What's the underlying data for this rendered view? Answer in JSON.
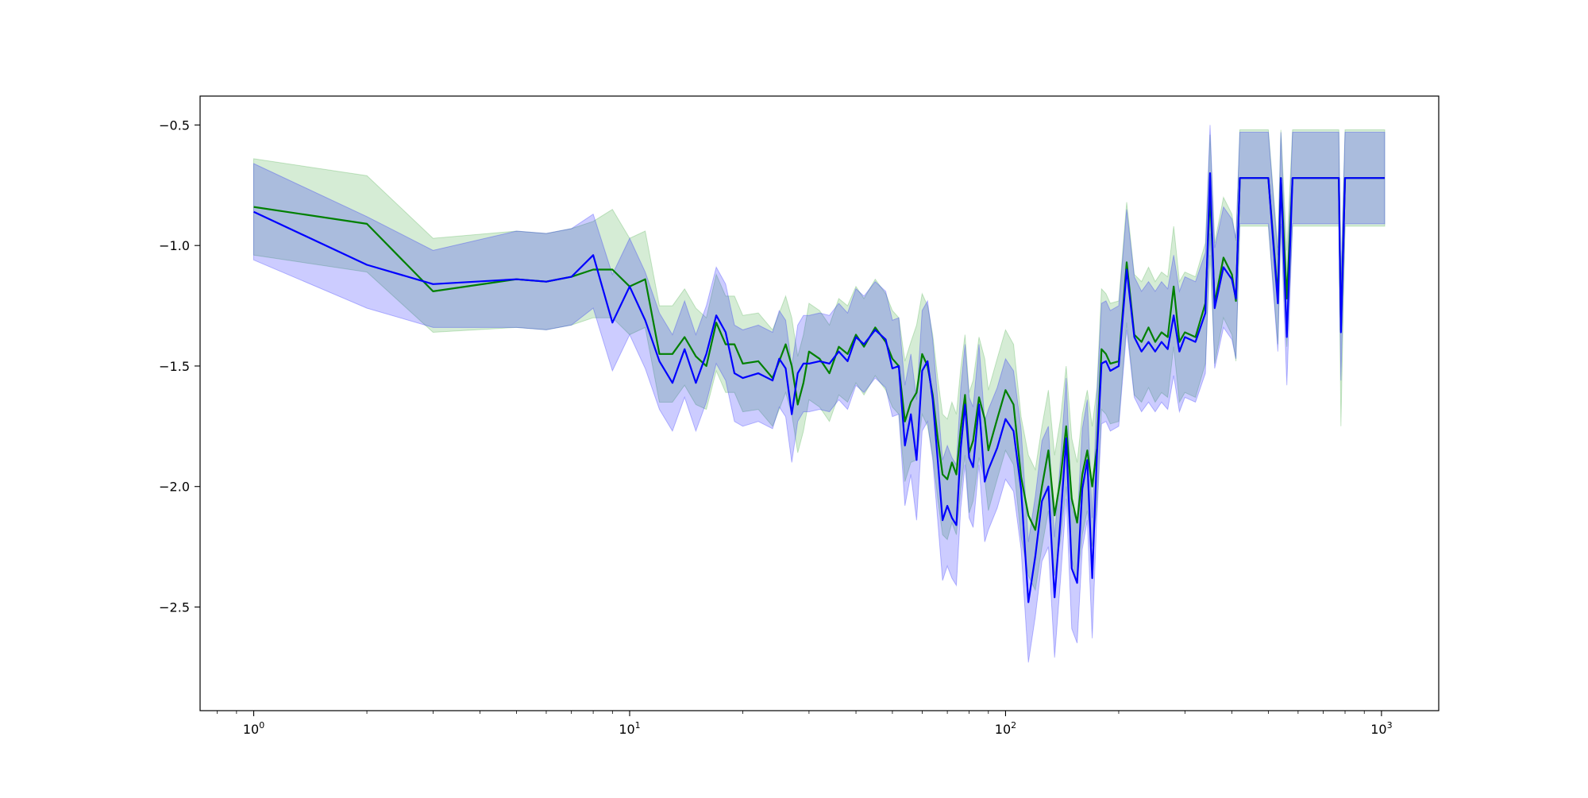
{
  "chart_data": {
    "type": "line",
    "title": "",
    "xlabel": "",
    "ylabel": "",
    "x_scale": "log",
    "xlim": [
      0.72,
      1420
    ],
    "ylim": [
      -2.93,
      -0.38
    ],
    "grid": false,
    "legend": "none",
    "x_ticks": [
      1,
      10,
      100,
      1000
    ],
    "x_tick_labels": [
      {
        "base": "10",
        "exp": "0"
      },
      {
        "base": "10",
        "exp": "1"
      },
      {
        "base": "10",
        "exp": "2"
      },
      {
        "base": "10",
        "exp": "3"
      }
    ],
    "y_ticks": [
      -0.5,
      -1.0,
      -1.5,
      -2.0,
      -2.5
    ],
    "y_tick_labels": [
      "−0.5",
      "−1.0",
      "−1.5",
      "−2.0",
      "−2.5"
    ],
    "series": [
      {
        "color": "#008000",
        "band_color": "#2ca02c",
        "x": [
          1,
          2,
          3,
          5,
          6,
          7,
          8,
          9,
          10,
          11,
          12,
          13,
          14,
          15,
          16,
          17,
          18,
          19,
          20,
          22,
          24,
          25,
          26,
          27,
          28,
          29,
          30,
          32,
          34,
          36,
          38,
          40,
          42,
          45,
          48,
          50,
          52,
          54,
          56,
          58,
          60,
          62,
          64,
          66,
          68,
          70,
          72,
          74,
          76,
          78,
          80,
          82,
          85,
          88,
          90,
          95,
          100,
          105,
          110,
          115,
          120,
          125,
          130,
          135,
          140,
          145,
          150,
          155,
          160,
          165,
          170,
          175,
          180,
          185,
          190,
          200,
          210,
          220,
          230,
          240,
          250,
          260,
          270,
          280,
          290,
          300,
          320,
          340,
          350,
          360,
          380,
          400,
          410,
          420,
          500,
          530,
          540,
          560,
          580,
          600,
          700,
          770,
          780,
          800,
          1000,
          1020
        ],
        "y": [
          -0.84,
          -0.91,
          -1.19,
          -1.14,
          -1.15,
          -1.13,
          -1.1,
          -1.1,
          -1.17,
          -1.14,
          -1.45,
          -1.45,
          -1.38,
          -1.46,
          -1.5,
          -1.32,
          -1.41,
          -1.41,
          -1.49,
          -1.48,
          -1.55,
          -1.48,
          -1.41,
          -1.5,
          -1.66,
          -1.57,
          -1.44,
          -1.47,
          -1.53,
          -1.42,
          -1.45,
          -1.37,
          -1.42,
          -1.34,
          -1.4,
          -1.47,
          -1.5,
          -1.73,
          -1.65,
          -1.61,
          -1.45,
          -1.5,
          -1.62,
          -1.8,
          -1.95,
          -1.97,
          -1.9,
          -1.95,
          -1.76,
          -1.62,
          -1.86,
          -1.81,
          -1.63,
          -1.72,
          -1.85,
          -1.72,
          -1.6,
          -1.66,
          -1.96,
          -2.12,
          -2.18,
          -2.0,
          -1.85,
          -2.12,
          -1.97,
          -1.75,
          -2.05,
          -2.15,
          -1.95,
          -1.85,
          -2.0,
          -1.84,
          -1.43,
          -1.45,
          -1.49,
          -1.48,
          -1.07,
          -1.37,
          -1.4,
          -1.34,
          -1.4,
          -1.36,
          -1.38,
          -1.17,
          -1.4,
          -1.36,
          -1.38,
          -1.24,
          -0.79,
          -1.24,
          -1.05,
          -1.12,
          -1.23,
          -0.72,
          -0.72,
          -1.21,
          -0.72,
          -1.22,
          -0.72,
          -0.72,
          -0.72,
          -0.72,
          -1.35,
          -0.72,
          -0.72,
          -0.72
        ],
        "upper": [
          -0.64,
          -0.71,
          -0.97,
          -0.94,
          -0.95,
          -0.93,
          -0.9,
          -0.85,
          -0.97,
          -0.94,
          -1.25,
          -1.25,
          -1.18,
          -1.26,
          -1.3,
          -1.12,
          -1.21,
          -1.21,
          -1.29,
          -1.28,
          -1.35,
          -1.28,
          -1.21,
          -1.3,
          -1.46,
          -1.37,
          -1.24,
          -1.27,
          -1.33,
          -1.22,
          -1.25,
          -1.17,
          -1.22,
          -1.14,
          -1.2,
          -1.27,
          -1.3,
          -1.48,
          -1.4,
          -1.33,
          -1.2,
          -1.25,
          -1.37,
          -1.55,
          -1.7,
          -1.72,
          -1.65,
          -1.7,
          -1.51,
          -1.37,
          -1.61,
          -1.56,
          -1.38,
          -1.47,
          -1.6,
          -1.47,
          -1.35,
          -1.41,
          -1.71,
          -1.87,
          -1.93,
          -1.75,
          -1.6,
          -1.87,
          -1.72,
          -1.5,
          -1.8,
          -1.9,
          -1.7,
          -1.6,
          -1.75,
          -1.59,
          -1.18,
          -1.2,
          -1.24,
          -1.23,
          -0.82,
          -1.12,
          -1.15,
          -1.09,
          -1.15,
          -1.11,
          -1.13,
          -0.92,
          -1.15,
          -1.11,
          -1.13,
          -0.99,
          -0.54,
          -0.99,
          -0.8,
          -0.87,
          -0.98,
          -0.52,
          -0.52,
          -1.01,
          -0.52,
          -1.02,
          -0.52,
          -0.52,
          -0.52,
          -0.52,
          -1.15,
          -0.52,
          -0.52,
          -0.52
        ],
        "lower": [
          -1.04,
          -1.11,
          -1.36,
          -1.34,
          -1.35,
          -1.33,
          -1.3,
          -1.3,
          -1.37,
          -1.34,
          -1.65,
          -1.65,
          -1.58,
          -1.66,
          -1.68,
          -1.52,
          -1.61,
          -1.61,
          -1.69,
          -1.68,
          -1.75,
          -1.68,
          -1.61,
          -1.7,
          -1.86,
          -1.77,
          -1.64,
          -1.67,
          -1.73,
          -1.62,
          -1.65,
          -1.57,
          -1.62,
          -1.54,
          -1.6,
          -1.67,
          -1.7,
          -1.98,
          -1.9,
          -1.89,
          -1.7,
          -1.75,
          -1.87,
          -2.05,
          -2.2,
          -2.22,
          -2.15,
          -2.2,
          -2.01,
          -1.87,
          -2.11,
          -2.06,
          -1.88,
          -1.97,
          -2.1,
          -1.97,
          -1.85,
          -1.91,
          -2.21,
          -2.37,
          -2.43,
          -2.25,
          -2.1,
          -2.37,
          -2.22,
          -2.0,
          -2.3,
          -2.4,
          -2.2,
          -2.1,
          -2.25,
          -2.09,
          -1.68,
          -1.7,
          -1.74,
          -1.73,
          -1.32,
          -1.62,
          -1.65,
          -1.59,
          -1.65,
          -1.61,
          -1.63,
          -1.42,
          -1.65,
          -1.61,
          -1.63,
          -1.49,
          -1.04,
          -1.49,
          -1.3,
          -1.37,
          -1.48,
          -0.92,
          -0.92,
          -1.41,
          -0.92,
          -1.42,
          -0.92,
          -0.92,
          -0.92,
          -0.92,
          -1.75,
          -0.92,
          -0.92,
          -0.92
        ]
      },
      {
        "color": "#0000ff",
        "band_color": "#0000ff",
        "x": [
          1,
          2,
          3,
          5,
          6,
          7,
          8,
          9,
          10,
          11,
          12,
          13,
          14,
          15,
          16,
          17,
          18,
          19,
          20,
          22,
          24,
          25,
          26,
          27,
          28,
          29,
          30,
          32,
          34,
          36,
          38,
          40,
          42,
          45,
          48,
          50,
          52,
          54,
          56,
          58,
          60,
          62,
          64,
          66,
          68,
          70,
          72,
          74,
          76,
          78,
          80,
          82,
          85,
          88,
          90,
          95,
          100,
          105,
          110,
          115,
          120,
          125,
          130,
          135,
          140,
          145,
          150,
          155,
          160,
          165,
          170,
          175,
          180,
          185,
          190,
          200,
          210,
          220,
          230,
          240,
          250,
          260,
          270,
          280,
          290,
          300,
          320,
          340,
          350,
          360,
          380,
          400,
          410,
          420,
          500,
          530,
          540,
          560,
          580,
          600,
          700,
          770,
          780,
          800,
          1000,
          1020
        ],
        "y": [
          -0.86,
          -1.08,
          -1.16,
          -1.14,
          -1.15,
          -1.13,
          -1.04,
          -1.32,
          -1.17,
          -1.31,
          -1.48,
          -1.57,
          -1.43,
          -1.57,
          -1.45,
          -1.29,
          -1.36,
          -1.53,
          -1.55,
          -1.53,
          -1.56,
          -1.47,
          -1.51,
          -1.7,
          -1.53,
          -1.49,
          -1.49,
          -1.48,
          -1.49,
          -1.44,
          -1.48,
          -1.38,
          -1.41,
          -1.35,
          -1.39,
          -1.51,
          -1.5,
          -1.83,
          -1.7,
          -1.89,
          -1.52,
          -1.48,
          -1.64,
          -1.89,
          -2.14,
          -2.08,
          -2.13,
          -2.16,
          -1.84,
          -1.66,
          -1.88,
          -1.92,
          -1.66,
          -1.98,
          -1.93,
          -1.84,
          -1.72,
          -1.77,
          -2.01,
          -2.48,
          -2.29,
          -2.06,
          -2.0,
          -2.46,
          -2.14,
          -1.8,
          -2.34,
          -2.4,
          -2.01,
          -1.89,
          -2.38,
          -1.87,
          -1.49,
          -1.48,
          -1.52,
          -1.5,
          -1.1,
          -1.38,
          -1.44,
          -1.4,
          -1.44,
          -1.4,
          -1.43,
          -1.29,
          -1.44,
          -1.38,
          -1.4,
          -1.28,
          -0.7,
          -1.26,
          -1.09,
          -1.14,
          -1.22,
          -0.72,
          -0.72,
          -1.24,
          -0.72,
          -1.38,
          -0.72,
          -0.72,
          -0.72,
          -0.72,
          -1.36,
          -0.72,
          -0.72,
          -0.72
        ],
        "upper": [
          -0.66,
          -0.88,
          -1.02,
          -0.94,
          -0.95,
          -0.93,
          -0.87,
          -1.12,
          -0.97,
          -1.11,
          -1.28,
          -1.37,
          -1.23,
          -1.37,
          -1.25,
          -1.09,
          -1.16,
          -1.33,
          -1.35,
          -1.33,
          -1.36,
          -1.27,
          -1.31,
          -1.5,
          -1.33,
          -1.29,
          -1.29,
          -1.28,
          -1.29,
          -1.24,
          -1.28,
          -1.18,
          -1.21,
          -1.15,
          -1.19,
          -1.31,
          -1.3,
          -1.58,
          -1.45,
          -1.64,
          -1.27,
          -1.23,
          -1.39,
          -1.64,
          -1.89,
          -1.83,
          -1.88,
          -1.91,
          -1.59,
          -1.41,
          -1.63,
          -1.67,
          -1.41,
          -1.73,
          -1.68,
          -1.59,
          -1.47,
          -1.52,
          -1.76,
          -2.23,
          -2.04,
          -1.81,
          -1.75,
          -2.21,
          -1.89,
          -1.55,
          -2.09,
          -2.15,
          -1.76,
          -1.64,
          -2.13,
          -1.62,
          -1.24,
          -1.23,
          -1.27,
          -1.25,
          -0.85,
          -1.13,
          -1.19,
          -1.15,
          -1.19,
          -1.15,
          -1.18,
          -1.04,
          -1.19,
          -1.13,
          -1.15,
          -1.03,
          -0.5,
          -1.01,
          -0.84,
          -0.89,
          -0.97,
          -0.53,
          -0.53,
          -1.04,
          -0.53,
          -1.18,
          -0.53,
          -0.53,
          -0.53,
          -0.53,
          -1.16,
          -0.53,
          -0.53,
          -0.53
        ],
        "lower": [
          -1.06,
          -1.26,
          -1.34,
          -1.34,
          -1.35,
          -1.33,
          -1.26,
          -1.52,
          -1.37,
          -1.51,
          -1.68,
          -1.77,
          -1.63,
          -1.77,
          -1.65,
          -1.49,
          -1.56,
          -1.73,
          -1.75,
          -1.73,
          -1.76,
          -1.67,
          -1.71,
          -1.9,
          -1.73,
          -1.69,
          -1.69,
          -1.68,
          -1.69,
          -1.64,
          -1.68,
          -1.58,
          -1.61,
          -1.55,
          -1.59,
          -1.71,
          -1.7,
          -2.08,
          -1.95,
          -2.14,
          -1.77,
          -1.73,
          -1.89,
          -2.14,
          -2.39,
          -2.33,
          -2.38,
          -2.41,
          -2.09,
          -1.91,
          -2.13,
          -2.17,
          -1.91,
          -2.23,
          -2.18,
          -2.09,
          -1.97,
          -2.02,
          -2.26,
          -2.73,
          -2.54,
          -2.31,
          -2.25,
          -2.71,
          -2.39,
          -2.05,
          -2.59,
          -2.65,
          -2.26,
          -2.14,
          -2.63,
          -2.12,
          -1.74,
          -1.73,
          -1.77,
          -1.75,
          -1.35,
          -1.63,
          -1.69,
          -1.65,
          -1.69,
          -1.65,
          -1.68,
          -1.54,
          -1.69,
          -1.63,
          -1.65,
          -1.53,
          -0.95,
          -1.51,
          -1.34,
          -1.39,
          -1.47,
          -0.91,
          -0.91,
          -1.44,
          -0.91,
          -1.58,
          -0.91,
          -0.91,
          -0.91,
          -0.91,
          -1.56,
          -0.91,
          -0.91,
          -0.91
        ]
      }
    ]
  }
}
